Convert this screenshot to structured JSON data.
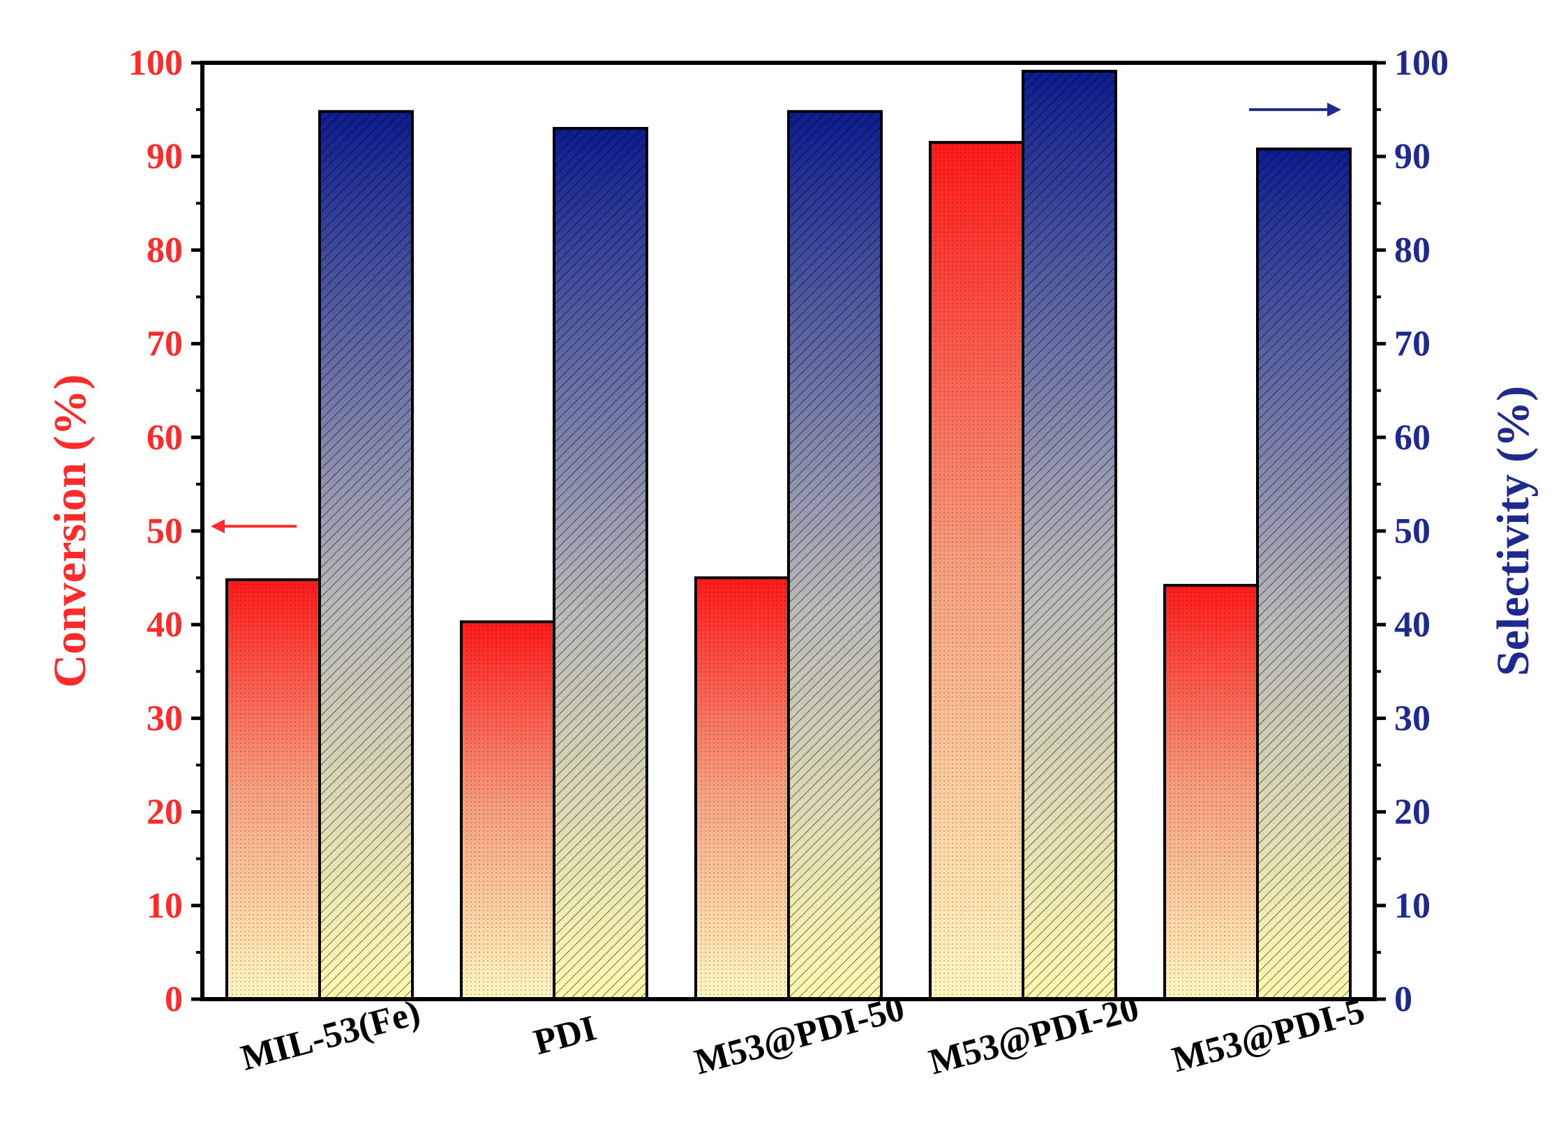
{
  "chart_data": {
    "type": "bar",
    "title": "",
    "xlabel": "",
    "categories": [
      "MIL-53(Fe)",
      "PDI",
      "M53@PDI-50",
      "M53@PDI-20",
      "M53@PDI-5"
    ],
    "series": [
      {
        "name": "Conversion",
        "axis": "left",
        "values": [
          44.8,
          40.3,
          45.0,
          91.5,
          44.2
        ]
      },
      {
        "name": "Selectivity",
        "axis": "right",
        "values": [
          94.8,
          93.0,
          94.8,
          99.1,
          90.8
        ]
      }
    ],
    "y_left": {
      "label": "Conversion (%)",
      "ylim": [
        0,
        100
      ],
      "ticks": [
        "0",
        "10",
        "20",
        "30",
        "40",
        "50",
        "60",
        "70",
        "80",
        "90",
        "100"
      ]
    },
    "y_right": {
      "label": "Selectivity (%)",
      "ylim": [
        0,
        100
      ],
      "ticks": [
        "0",
        "10",
        "20",
        "30",
        "40",
        "50",
        "60",
        "70",
        "80",
        "90",
        "100"
      ]
    },
    "grid": false,
    "annotations": [
      {
        "name": "conversion-axis-arrow",
        "direction": "left",
        "level": 50.5
      },
      {
        "name": "selectivity-axis-arrow",
        "direction": "right",
        "level": 95
      }
    ],
    "colors": {
      "left_axis": "#ff2a2a",
      "right_axis": "#1f2a8e",
      "conversion_top": "#ff1a1a",
      "conversion_bottom": "#fff7c0",
      "selectivity_top": "#0d1d8f",
      "selectivity_bottom": "#fffab0"
    }
  }
}
